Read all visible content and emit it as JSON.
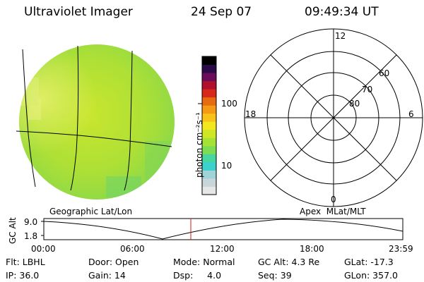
{
  "header": {
    "title": "Ultraviolet Imager",
    "date": "24 Sep 07",
    "time": "09:49:34 UT"
  },
  "colorbar": {
    "unit_label": "photon cm⁻²s⁻¹",
    "tick_100": "100",
    "tick_10": "10",
    "colors": [
      "#e6e6e6",
      "#c8d6dc",
      "#9fd3d8",
      "#3bd1cf",
      "#48d6a0",
      "#7cdc54",
      "#a6e234",
      "#cfe624",
      "#f2e81e",
      "#f7c21a",
      "#f59a14",
      "#e56a10",
      "#d8281a",
      "#b0102c",
      "#6a0c5a",
      "#2a0a48",
      "#000000"
    ]
  },
  "polar": {
    "mlt_12": "12",
    "mlt_18": "18",
    "mlt_6": "6",
    "mlt_0": "0",
    "lat_60": "60",
    "lat_70": "70",
    "lat_80": "80"
  },
  "panel_labels": {
    "left": "Geographic Lat/Lon",
    "right": "Apex  MLat/MLT"
  },
  "altitude_plot": {
    "ylabel": "GC Alt",
    "ymax": "9.0",
    "ymin": "1.8",
    "x_ticks": [
      "00:00",
      "06:00",
      "12:00",
      "18:00",
      "23:59"
    ]
  },
  "status": {
    "flt": "Flt: LBHL",
    "ip": "IP: 36.0",
    "door": "Door: Open",
    "gain": "Gain: 14",
    "mode": "Mode: Normal",
    "dsp": "Dsp:     4.0",
    "gc_alt": "GC Alt: 4.3 Re",
    "seq": "Seq: 39",
    "glat": "GLat: -17.3",
    "glon": "GLon: 357.0"
  }
}
